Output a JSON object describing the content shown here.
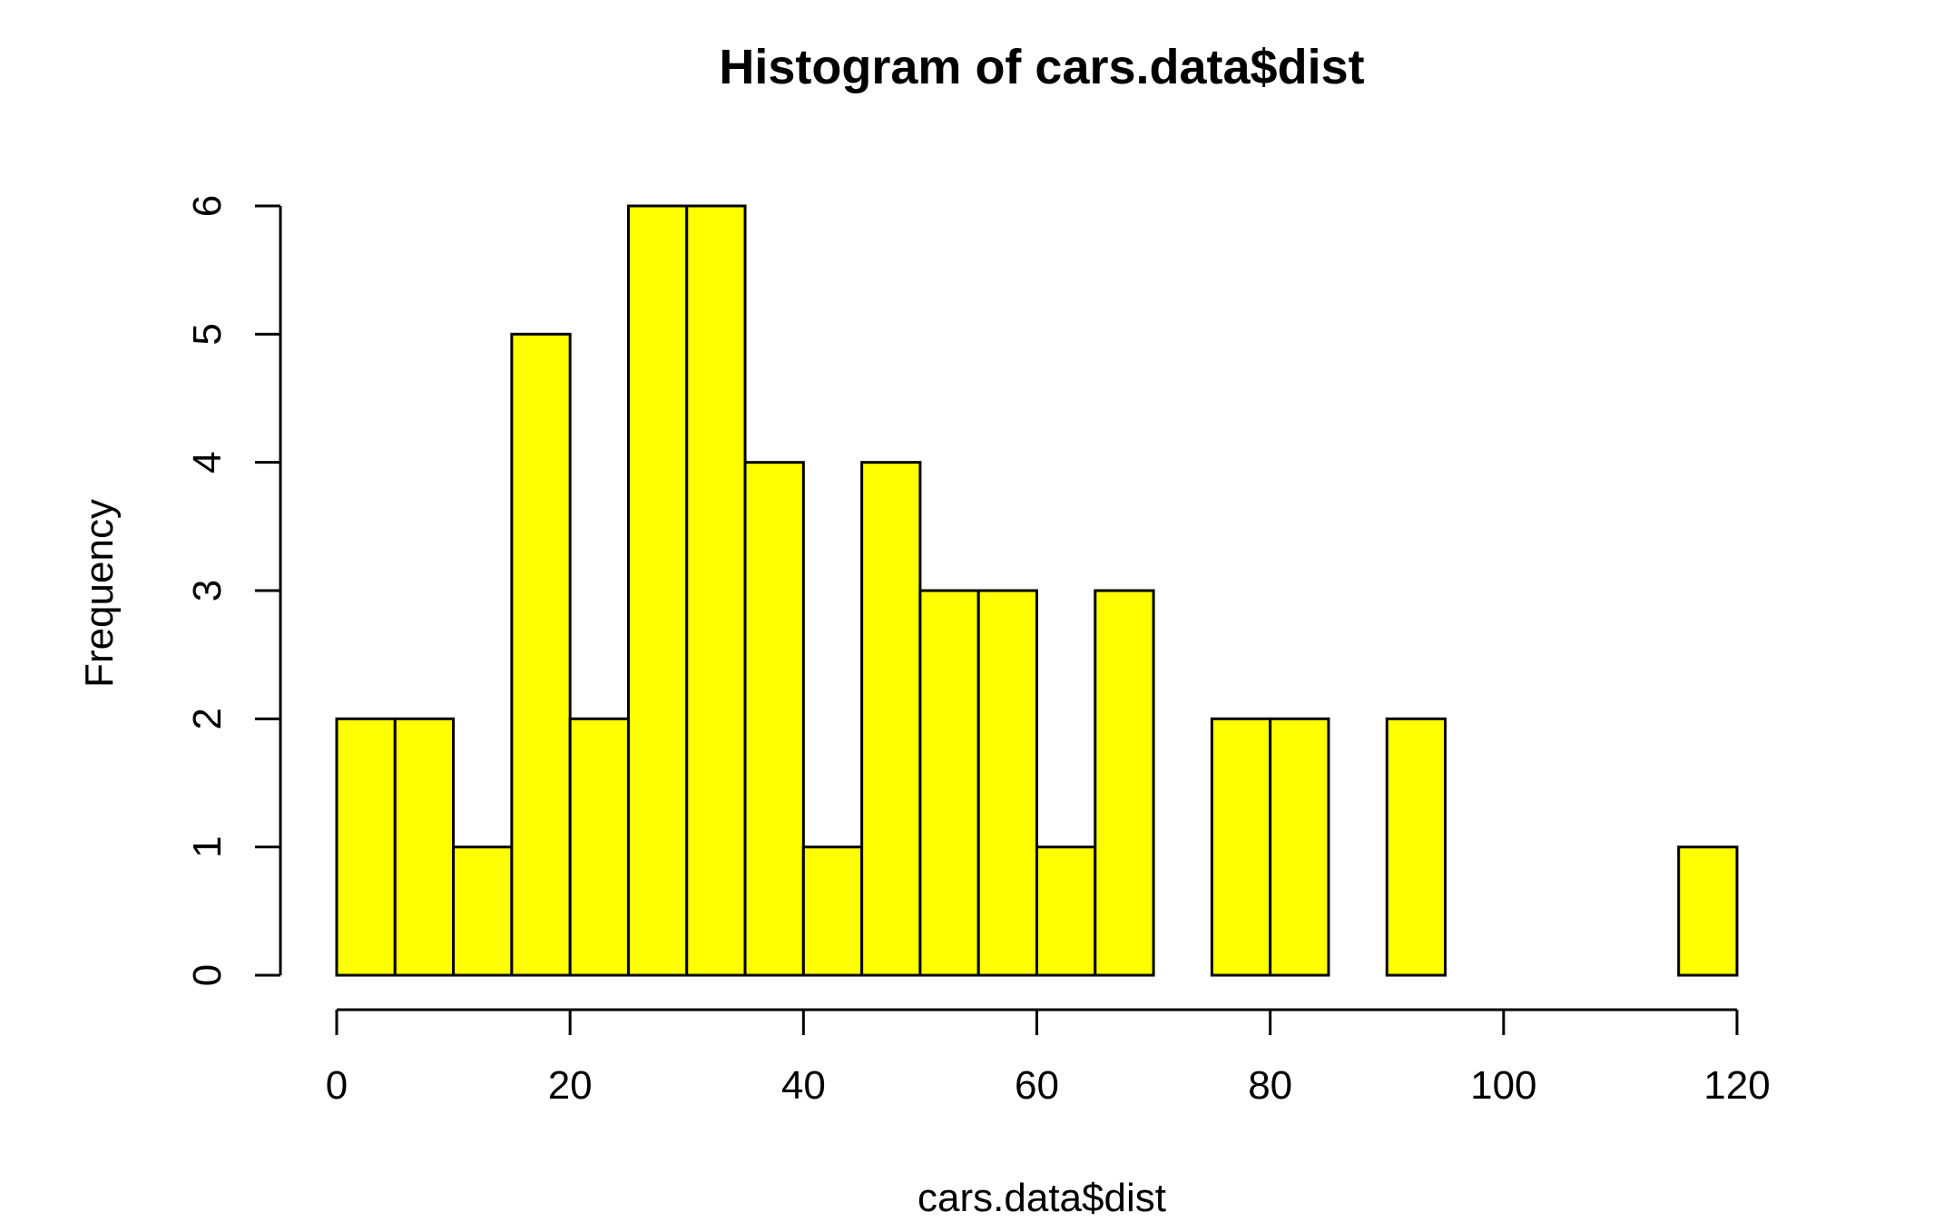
{
  "chart_data": {
    "type": "bar",
    "title": "Histogram of cars.data$dist",
    "xlabel": "cars.data$dist",
    "ylabel": "Frequency",
    "bin_edges": [
      0,
      5,
      10,
      15,
      20,
      25,
      30,
      35,
      40,
      45,
      50,
      55,
      60,
      65,
      70,
      75,
      80,
      85,
      90,
      95,
      100,
      105,
      110,
      115,
      120
    ],
    "values": [
      2,
      2,
      1,
      5,
      2,
      6,
      6,
      4,
      1,
      4,
      3,
      3,
      1,
      3,
      0,
      2,
      2,
      0,
      2,
      0,
      0,
      0,
      0,
      1
    ],
    "xlim": [
      0,
      120
    ],
    "ylim": [
      0,
      6
    ],
    "x_ticks": [
      "0",
      "20",
      "40",
      "60",
      "80",
      "100",
      "120"
    ],
    "y_ticks": [
      "0",
      "1",
      "2",
      "3",
      "4",
      "5",
      "6"
    ],
    "bar_color": "#ffff00",
    "grid": false
  }
}
